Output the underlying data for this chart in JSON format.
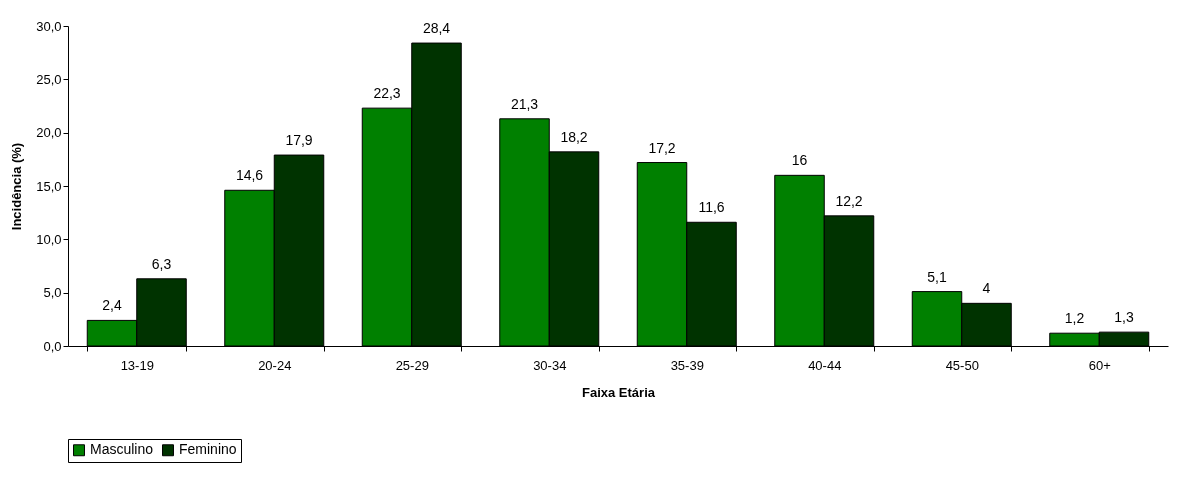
{
  "chart_data": {
    "type": "bar",
    "xlabel": "Faixa Etária",
    "ylabel": "Incidência (%)",
    "categories": [
      "13-19",
      "20-24",
      "25-29",
      "30-34",
      "35-39",
      "40-44",
      "45-50",
      "60+"
    ],
    "series": [
      {
        "name": "Masculino",
        "color": "#008000",
        "values": [
          2.4,
          14.6,
          22.3,
          21.3,
          17.2,
          16,
          5.1,
          1.2
        ],
        "value_labels": [
          "2,4",
          "14,6",
          "22,3",
          "21,3",
          "17,2",
          "16",
          "5,1",
          "1,2"
        ]
      },
      {
        "name": "Feminino",
        "color": "#003300",
        "values": [
          6.3,
          17.9,
          28.4,
          18.2,
          11.6,
          12.2,
          4,
          1.3
        ],
        "value_labels": [
          "6,3",
          "17,9",
          "28,4",
          "18,2",
          "11,6",
          "12,2",
          "4",
          "1,3"
        ]
      }
    ],
    "ylim": [
      0,
      30
    ],
    "yticks": [
      {
        "value": 0,
        "label": "0,0"
      },
      {
        "value": 5,
        "label": "5,0"
      },
      {
        "value": 10,
        "label": "10,0"
      },
      {
        "value": 15,
        "label": "15,0"
      },
      {
        "value": 20,
        "label": "20,0"
      },
      {
        "value": 25,
        "label": "25,0"
      },
      {
        "value": 30,
        "label": "30,0"
      }
    ],
    "grid": false,
    "legend": "bottom"
  }
}
